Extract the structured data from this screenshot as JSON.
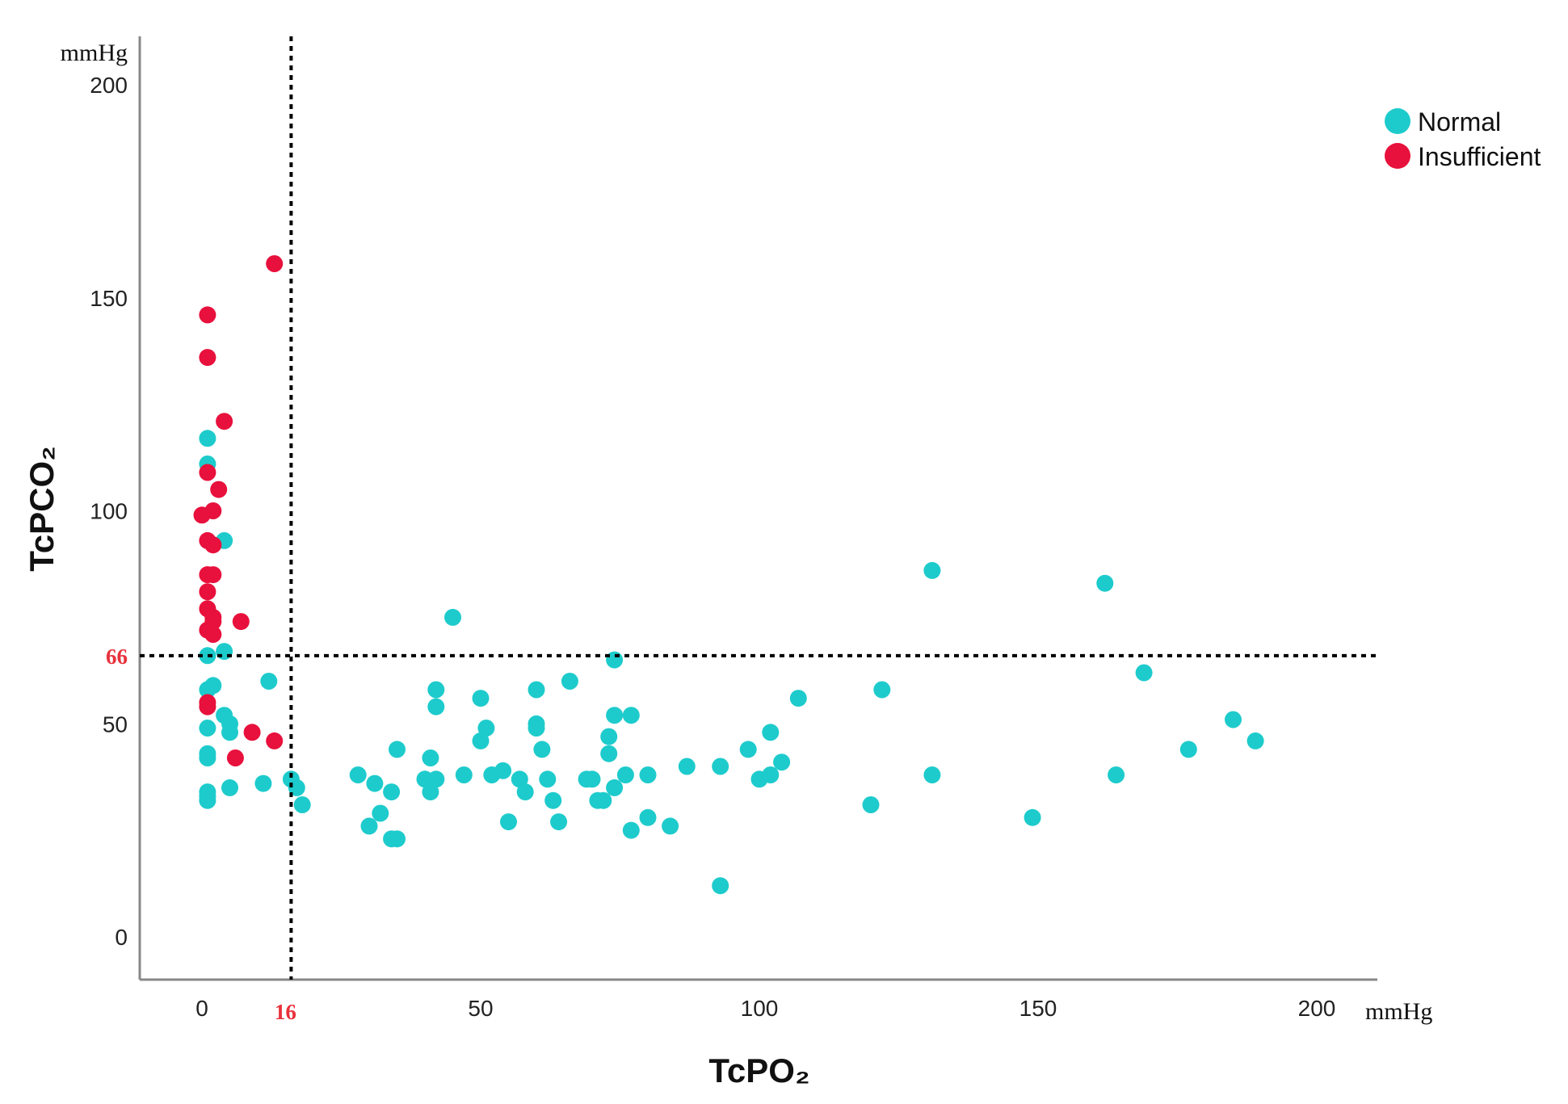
{
  "chart_data": {
    "type": "scatter",
    "title": "",
    "xlabel": "TcPO₂",
    "ylabel": "TcPCO₂",
    "x_unit": "mmHg",
    "y_unit": "mmHg",
    "xlim": [
      -22,
      212
    ],
    "ylim": [
      -10,
      212
    ],
    "x_ticks": [
      "0",
      "50",
      "100",
      "150",
      "200"
    ],
    "y_ticks": [
      "0",
      "50",
      "100",
      "150",
      "200"
    ],
    "x_tick_values": [
      0,
      50,
      100,
      150,
      200
    ],
    "y_tick_values": [
      0,
      50,
      100,
      150,
      200
    ],
    "reference_lines": [
      {
        "axis": "x",
        "value": 16,
        "label": "16",
        "style": "dotted",
        "color": "#e8323c"
      },
      {
        "axis": "y",
        "value": 66,
        "label": "66",
        "style": "dotted",
        "color": "#e8323c"
      }
    ],
    "legend_position": "top-right",
    "grid": false,
    "series": [
      {
        "name": "Normal",
        "color": "#1ecbcc",
        "points": [
          [
            1,
            117
          ],
          [
            1,
            111
          ],
          [
            4,
            93
          ],
          [
            4,
            67
          ],
          [
            1,
            66
          ],
          [
            2,
            59
          ],
          [
            1,
            58
          ],
          [
            4,
            52
          ],
          [
            5,
            50
          ],
          [
            5,
            48
          ],
          [
            1,
            49
          ],
          [
            1,
            43
          ],
          [
            1,
            42
          ],
          [
            1,
            34
          ],
          [
            1,
            33
          ],
          [
            1,
            32
          ],
          [
            5,
            35
          ],
          [
            12,
            60
          ],
          [
            11,
            36
          ],
          [
            16,
            37
          ],
          [
            17,
            35
          ],
          [
            18,
            31
          ],
          [
            28,
            38
          ],
          [
            31,
            36
          ],
          [
            32,
            29
          ],
          [
            30,
            26
          ],
          [
            34,
            34
          ],
          [
            35,
            44
          ],
          [
            34,
            23
          ],
          [
            35,
            23
          ],
          [
            40,
            37
          ],
          [
            41,
            42
          ],
          [
            42,
            37
          ],
          [
            41,
            34
          ],
          [
            42,
            58
          ],
          [
            42,
            54
          ],
          [
            47,
            38
          ],
          [
            45,
            75
          ],
          [
            50,
            56
          ],
          [
            50,
            46
          ],
          [
            51,
            49
          ],
          [
            52,
            38
          ],
          [
            54,
            39
          ],
          [
            55,
            27
          ],
          [
            57,
            37
          ],
          [
            58,
            34
          ],
          [
            60,
            58
          ],
          [
            60,
            50
          ],
          [
            60,
            49
          ],
          [
            61,
            44
          ],
          [
            62,
            37
          ],
          [
            63,
            32
          ],
          [
            64,
            27
          ],
          [
            66,
            60
          ],
          [
            69,
            37
          ],
          [
            70,
            37
          ],
          [
            71,
            32
          ],
          [
            72,
            32
          ],
          [
            73,
            47
          ],
          [
            73,
            43
          ],
          [
            74,
            52
          ],
          [
            74,
            35
          ],
          [
            74,
            65
          ],
          [
            76,
            38
          ],
          [
            77,
            52
          ],
          [
            77,
            25
          ],
          [
            80,
            28
          ],
          [
            80,
            38
          ],
          [
            84,
            26
          ],
          [
            87,
            40
          ],
          [
            93,
            40
          ],
          [
            93,
            12
          ],
          [
            98,
            44
          ],
          [
            100,
            37
          ],
          [
            102,
            38
          ],
          [
            102,
            48
          ],
          [
            104,
            41
          ],
          [
            107,
            56
          ],
          [
            120,
            31
          ],
          [
            122,
            58
          ],
          [
            131,
            86
          ],
          [
            131,
            38
          ],
          [
            149,
            28
          ],
          [
            162,
            83
          ],
          [
            164,
            38
          ],
          [
            169,
            62
          ],
          [
            177,
            44
          ],
          [
            185,
            51
          ],
          [
            189,
            46
          ]
        ]
      },
      {
        "name": "Insufficient",
        "color": "#e8103c",
        "points": [
          [
            13,
            158
          ],
          [
            1,
            146
          ],
          [
            1,
            136
          ],
          [
            4,
            121
          ],
          [
            1,
            109
          ],
          [
            3,
            105
          ],
          [
            2,
            100
          ],
          [
            0,
            99
          ],
          [
            1,
            93
          ],
          [
            2,
            92
          ],
          [
            1,
            85
          ],
          [
            2,
            85
          ],
          [
            1,
            81
          ],
          [
            7,
            74
          ],
          [
            1,
            77
          ],
          [
            2,
            75
          ],
          [
            2,
            74
          ],
          [
            1,
            72
          ],
          [
            2,
            71
          ],
          [
            1,
            55
          ],
          [
            1,
            54
          ],
          [
            9,
            48
          ],
          [
            6,
            42
          ],
          [
            13,
            46
          ]
        ]
      }
    ]
  }
}
